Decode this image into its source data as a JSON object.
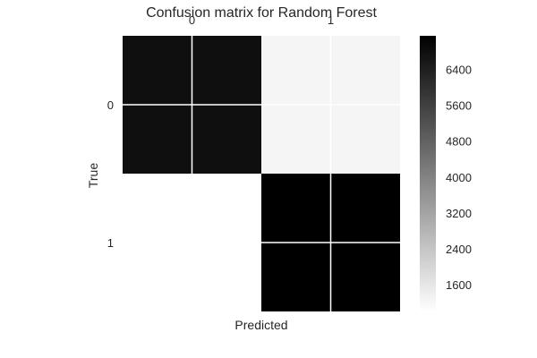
{
  "chart_data": {
    "type": "heatmap",
    "title": "Confusion matrix for Random Forest",
    "xlabel": "Predicted",
    "ylabel": "True",
    "x_categories": [
      "0",
      "1"
    ],
    "y_categories": [
      "0",
      "1"
    ],
    "values": [
      [
        6800,
        1250
      ],
      [
        1000,
        7150
      ]
    ],
    "colormap": {
      "low": "#ffffff",
      "high": "#000000"
    },
    "colorbar": {
      "range": [
        1000,
        7150
      ],
      "ticks": [
        "1600",
        "2400",
        "3200",
        "4000",
        "4800",
        "5600",
        "6400"
      ]
    },
    "grid": true
  }
}
